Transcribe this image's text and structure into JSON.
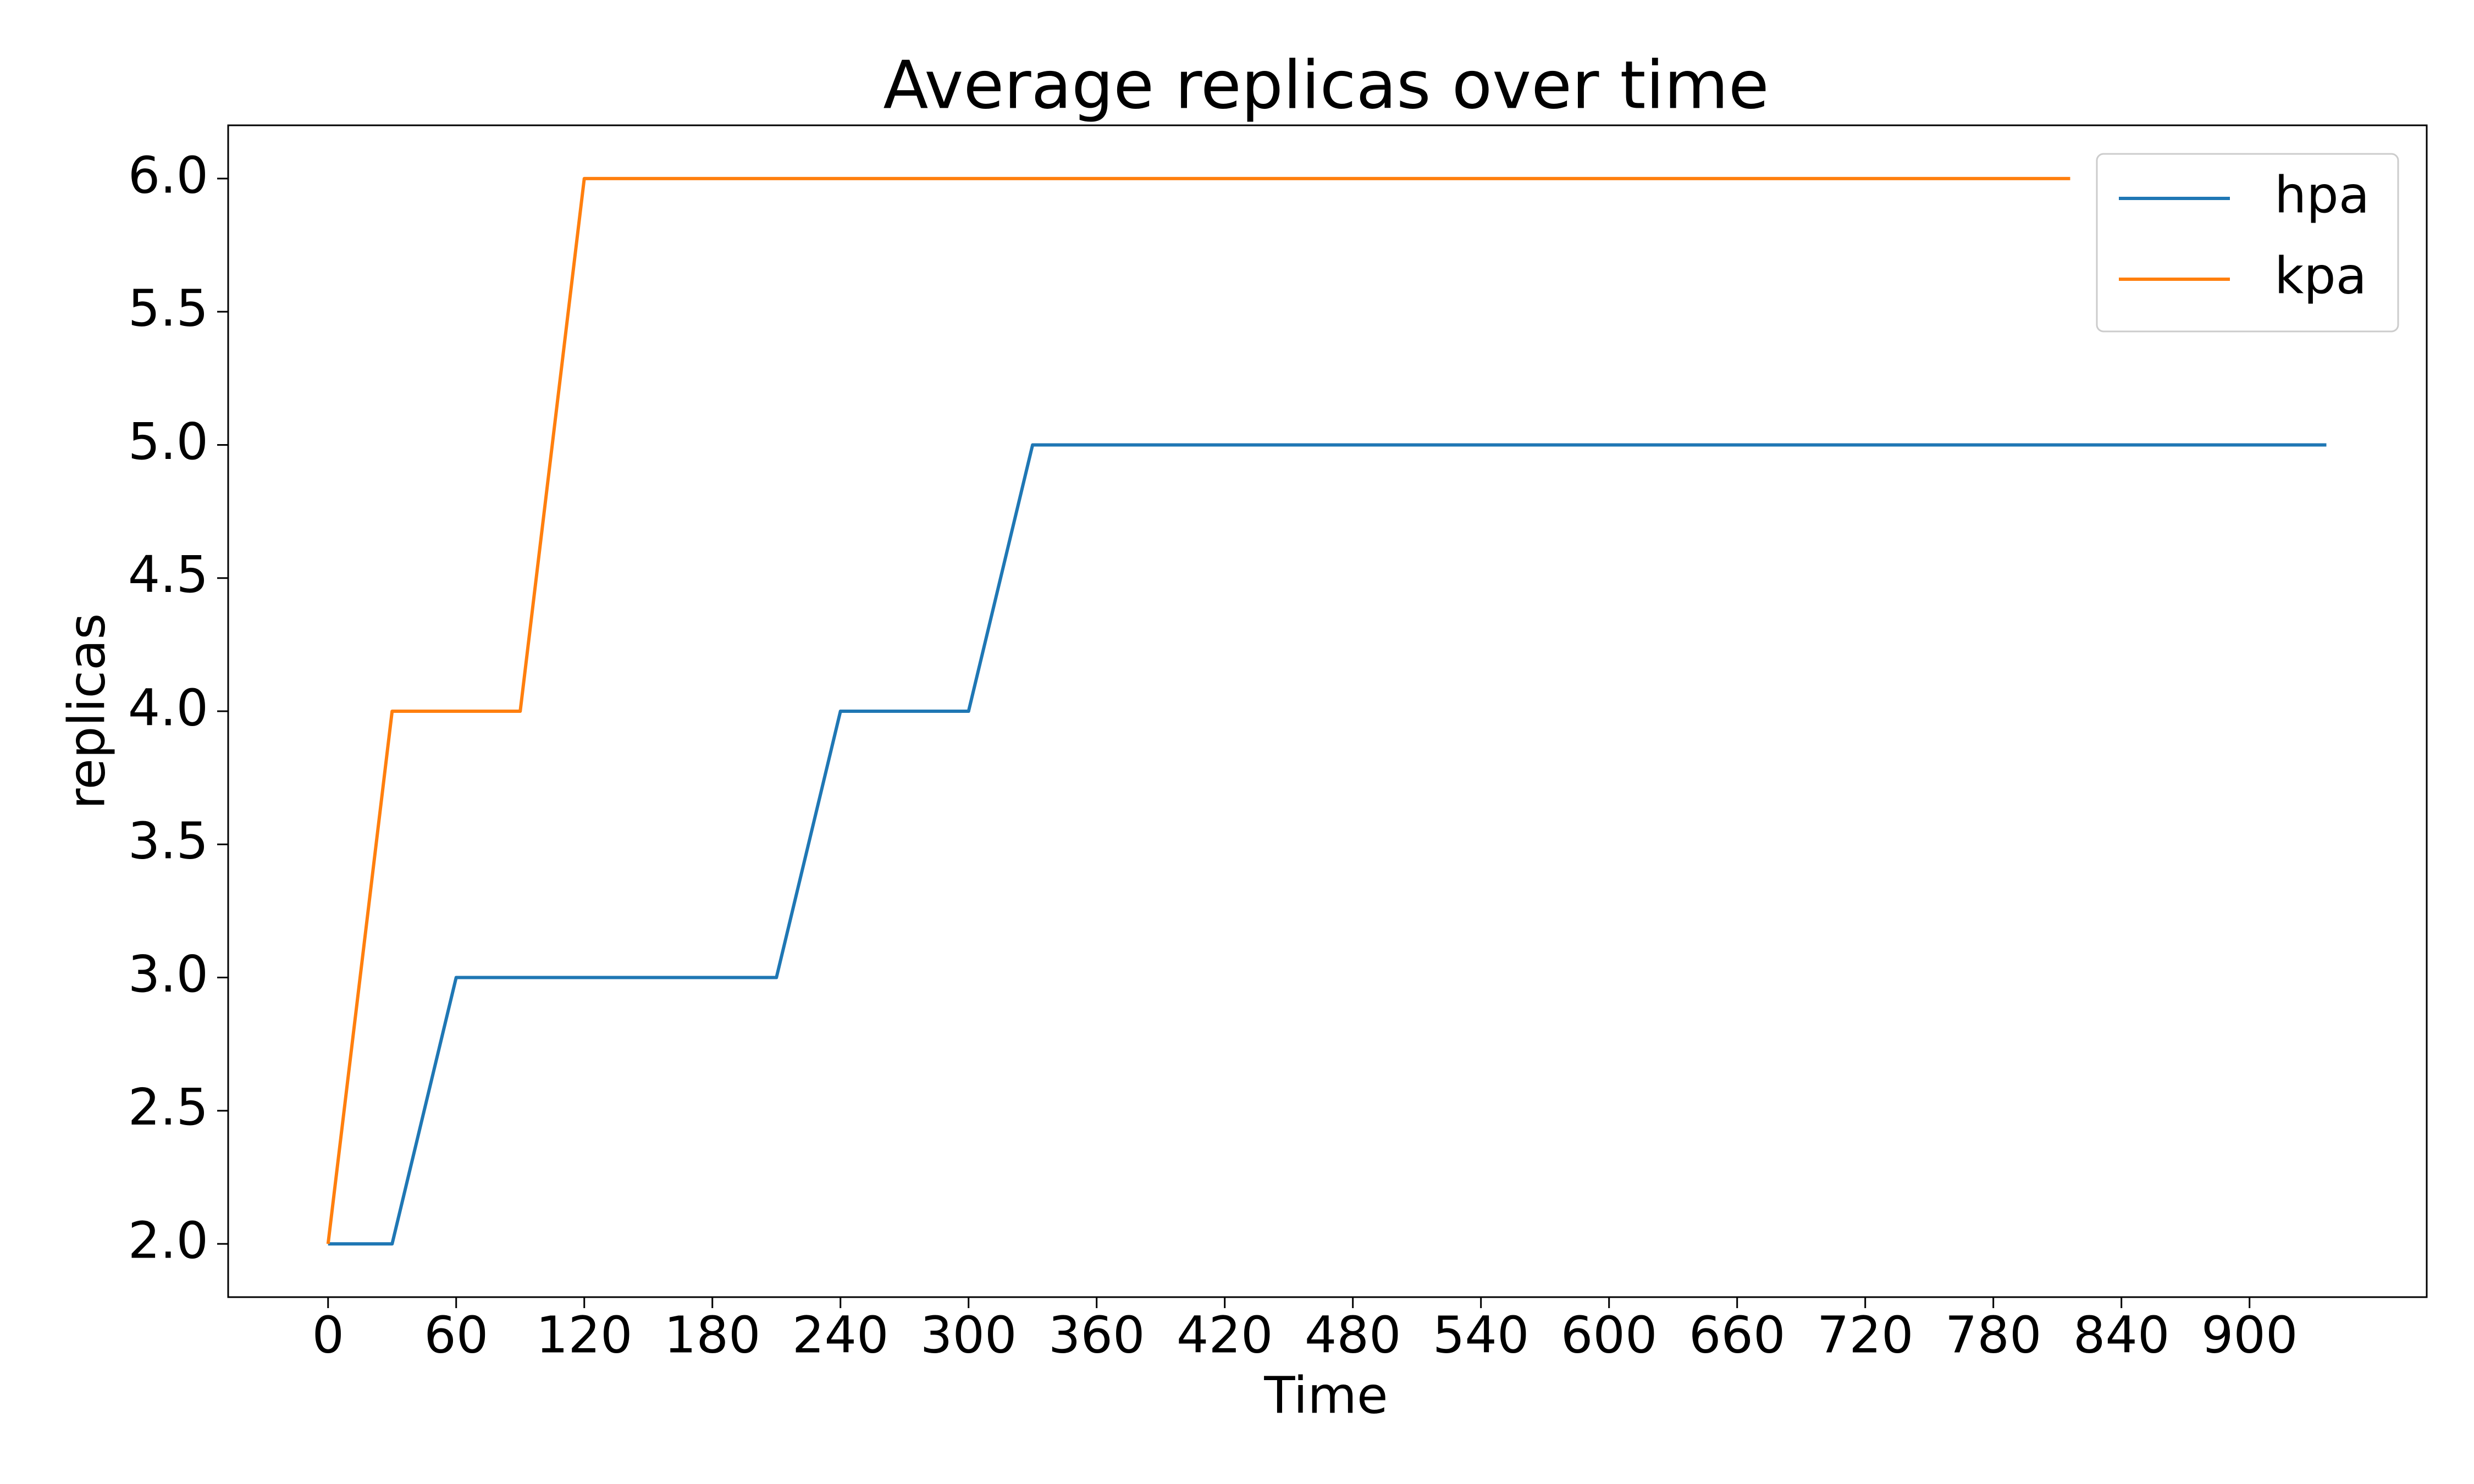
{
  "chart_data": {
    "type": "line",
    "title": "Average replicas over time",
    "x_label": "Time",
    "y_label": "replicas",
    "series": [
      {
        "name": "hpa",
        "color": "#1f77b4",
        "x": [
          0,
          30,
          60,
          210,
          240,
          300,
          330,
          936
        ],
        "values": [
          2,
          2,
          3,
          3,
          4,
          4,
          5,
          5
        ]
      },
      {
        "name": "kpa",
        "color": "#ff7f0e",
        "x": [
          0,
          30,
          90,
          120,
          816
        ],
        "values": [
          2,
          4,
          4,
          6,
          6
        ]
      }
    ],
    "xlim": [
      -46.8,
      983
    ],
    "xticks": [
      0,
      60,
      120,
      180,
      240,
      300,
      360,
      420,
      480,
      540,
      600,
      660,
      720,
      780,
      840,
      900
    ],
    "ylim": [
      1.8,
      6.2
    ],
    "yticks": [
      {
        "value": 2,
        "label": "2.0"
      },
      2.5,
      {
        "value": 3,
        "label": "3.0"
      },
      3.5,
      {
        "value": 4,
        "label": "4.0"
      },
      4.5,
      {
        "value": 5,
        "label": "5.0"
      },
      5.5,
      {
        "value": 6,
        "label": "6.0"
      }
    ],
    "grid": false,
    "legend": "upper right"
  }
}
